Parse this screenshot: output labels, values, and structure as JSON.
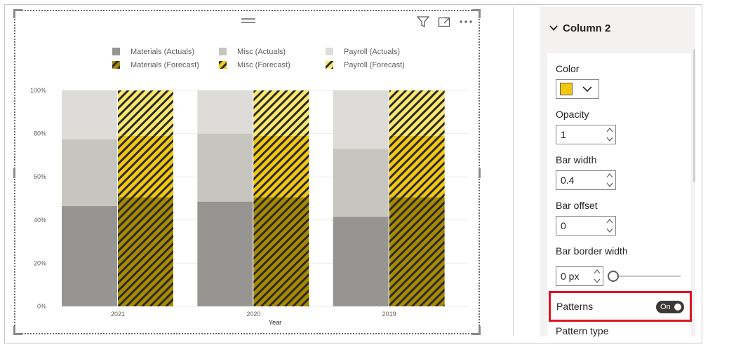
{
  "chart_data": {
    "type": "bar",
    "stacked": true,
    "percent_scale": true,
    "categories": [
      "2021",
      "2020",
      "2019"
    ],
    "xlabel": "Year",
    "ylabel": "",
    "ylim": [
      0,
      100
    ],
    "y_ticks": [
      "0%",
      "20%",
      "40%",
      "60%",
      "80%",
      "100%"
    ],
    "y_tick_values": [
      0,
      20,
      40,
      60,
      80,
      100
    ],
    "grid": true,
    "legend_position": "top",
    "legend": [
      {
        "name": "Materials (Actuals)",
        "color": "#979591",
        "pattern": false
      },
      {
        "name": "Misc (Actuals)",
        "color": "#c6c5c0",
        "pattern": false
      },
      {
        "name": "Payroll (Actuals)",
        "color": "#dddcd8",
        "pattern": false
      },
      {
        "name": "Materials (Forecast)",
        "color": "#a78a00",
        "pattern": true
      },
      {
        "name": "Misc (Forecast)",
        "color": "#f2c811",
        "pattern": true
      },
      {
        "name": "Payroll (Forecast)",
        "color": "#fbe96e",
        "pattern": true
      }
    ],
    "columns": [
      {
        "name": "Actuals",
        "series": [
          {
            "name": "Materials (Actuals)",
            "values": [
              46.5,
              48.5,
              41.5
            ]
          },
          {
            "name": "Misc (Actuals)",
            "values": [
              31,
              31.5,
              31.5
            ]
          },
          {
            "name": "Payroll (Actuals)",
            "values": [
              22.5,
              20,
              27
            ]
          }
        ]
      },
      {
        "name": "Forecast",
        "series": [
          {
            "name": "Materials (Forecast)",
            "values": [
              50.5,
              50.5,
              50.5
            ]
          },
          {
            "name": "Misc (Forecast)",
            "values": [
              28.5,
              28.5,
              28.5
            ]
          },
          {
            "name": "Payroll (Forecast)",
            "values": [
              21,
              21,
              21
            ]
          }
        ]
      }
    ]
  },
  "pane": {
    "section_title": "Column 2",
    "color_label": "Color",
    "color_value": "#f2c811",
    "opacity_label": "Opacity",
    "opacity_value": "1",
    "bar_width_label": "Bar width",
    "bar_width_value": "0.4",
    "bar_offset_label": "Bar offset",
    "bar_offset_value": "0",
    "bar_border_width_label": "Bar border width",
    "bar_border_width_value": "0 px",
    "patterns_label": "Patterns",
    "patterns_toggle": "On",
    "pattern_type_label": "Pattern type"
  },
  "icons": {
    "filter": "filter-icon",
    "focus": "focus-mode-icon",
    "more": "more-options-icon",
    "grip": "drag-grip-icon"
  }
}
